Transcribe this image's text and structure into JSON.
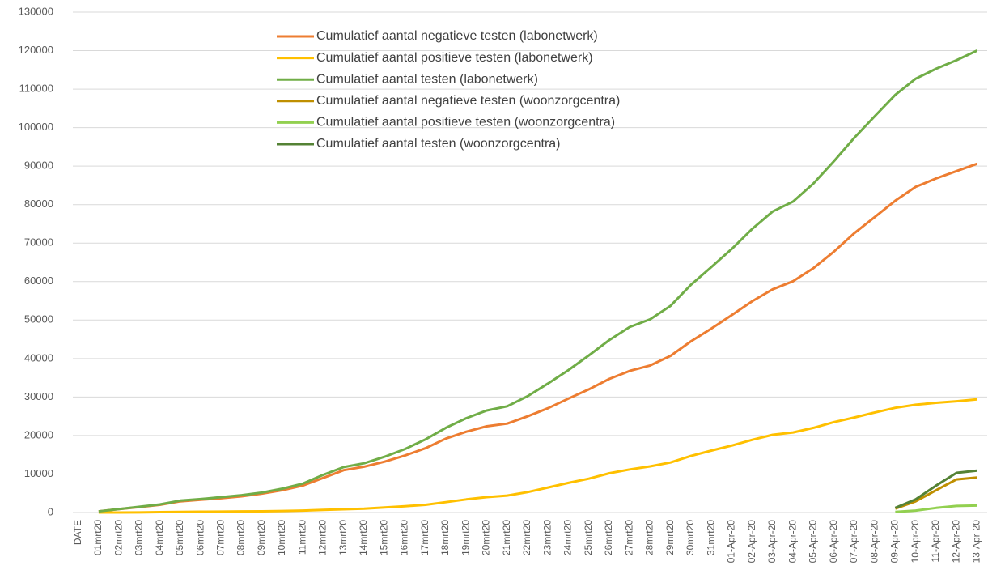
{
  "chart_data": {
    "type": "line",
    "categories": [
      "DATE",
      "01mrt20",
      "02mrt20",
      "03mrt20",
      "04mrt20",
      "05mrt20",
      "06mrt20",
      "07mrt20",
      "08mrt20",
      "09mrt20",
      "10mrt20",
      "11mrt20",
      "12mrt20",
      "13mrt20",
      "14mrt20",
      "15mrt20",
      "16mrt20",
      "17mrt20",
      "18mrt20",
      "19mrt20",
      "20mrt20",
      "21mrt20",
      "22mrt20",
      "23mrt20",
      "24mrt20",
      "25mrt20",
      "26mrt20",
      "27mrt20",
      "28mrt20",
      "29mrt20",
      "30mrt20",
      "31mrt20",
      "01-Apr-20",
      "02-Apr-20",
      "03-Apr-20",
      "04-Apr-20",
      "05-Apr-20",
      "06-Apr-20",
      "07-Apr-20",
      "08-Apr-20",
      "09-Apr-20",
      "10-Apr-20",
      "11-Apr-20",
      "12-Apr-20",
      "13-Apr-20"
    ],
    "series": [
      {
        "name": "Cumulatief aantal negatieve  testen (labonetwerk)",
        "color": "#ed7d31",
        "values": [
          null,
          300,
          900,
          1400,
          2000,
          2900,
          3300,
          3700,
          4200,
          4900,
          5800,
          7000,
          9000,
          11000,
          11900,
          13200,
          14800,
          16700,
          19200,
          21000,
          22400,
          23100,
          25000,
          27100,
          29600,
          32000,
          34700,
          36800,
          38200,
          40700,
          44500,
          47800,
          51300,
          54900,
          58000,
          60100,
          63500,
          67800,
          72600,
          76800,
          81000,
          84600,
          86800,
          88700,
          90600
        ]
      },
      {
        "name": "Cumulatief aantal positieve  testen (labonetwerk)",
        "color": "#ffc000",
        "values": [
          null,
          0,
          10,
          20,
          100,
          170,
          200,
          230,
          300,
          320,
          400,
          500,
          700,
          850,
          1000,
          1300,
          1650,
          2000,
          2700,
          3400,
          4000,
          4400,
          5300,
          6500,
          7700,
          8800,
          10200,
          11200,
          12000,
          13000,
          14700,
          16100,
          17400,
          18900,
          20200,
          20800,
          22000,
          23500,
          24700,
          26000,
          27200,
          28000,
          28500,
          28900,
          29400
        ]
      },
      {
        "name": "Cumulatief aantal testen (labonetwerk)",
        "color": "#70ad47",
        "values": [
          null,
          300,
          900,
          1500,
          2100,
          3100,
          3500,
          4000,
          4500,
          5200,
          6200,
          7500,
          9800,
          11800,
          12800,
          14500,
          16500,
          19000,
          22000,
          24500,
          26500,
          27600,
          30200,
          33500,
          37000,
          40800,
          44800,
          48200,
          50200,
          53700,
          59200,
          63800,
          68500,
          73700,
          78200,
          80800,
          85500,
          91300,
          97400,
          103000,
          108500,
          112700,
          115300,
          117500,
          120000
        ]
      },
      {
        "name": "Cumulatief aantal negatieve  testen (woonzorgcentra)",
        "color": "#bf8f00",
        "values": [
          null,
          null,
          null,
          null,
          null,
          null,
          null,
          null,
          null,
          null,
          null,
          null,
          null,
          null,
          null,
          null,
          null,
          null,
          null,
          null,
          null,
          null,
          null,
          null,
          null,
          null,
          null,
          null,
          null,
          null,
          null,
          null,
          null,
          null,
          null,
          null,
          null,
          null,
          null,
          null,
          1000,
          2900,
          5800,
          8600,
          9100
        ]
      },
      {
        "name": "Cumulatief aantal positieve  testen (woonzorgcentra)",
        "color": "#92d050",
        "values": [
          null,
          null,
          null,
          null,
          null,
          null,
          null,
          null,
          null,
          null,
          null,
          null,
          null,
          null,
          null,
          null,
          null,
          null,
          null,
          null,
          null,
          null,
          null,
          null,
          null,
          null,
          null,
          null,
          null,
          null,
          null,
          null,
          null,
          null,
          null,
          null,
          null,
          null,
          null,
          null,
          150,
          500,
          1200,
          1700,
          1800
        ]
      },
      {
        "name": "Cumulatief aantal testen (woonzorgcentra)",
        "color": "#548235",
        "values": [
          null,
          null,
          null,
          null,
          null,
          null,
          null,
          null,
          null,
          null,
          null,
          null,
          null,
          null,
          null,
          null,
          null,
          null,
          null,
          null,
          null,
          null,
          null,
          null,
          null,
          null,
          null,
          null,
          null,
          null,
          null,
          null,
          null,
          null,
          null,
          null,
          null,
          null,
          null,
          null,
          1200,
          3400,
          7000,
          10300,
          10900
        ]
      }
    ],
    "ylim": [
      0,
      130000
    ],
    "yticks": [
      0,
      10000,
      20000,
      30000,
      40000,
      50000,
      60000,
      70000,
      80000,
      90000,
      100000,
      110000,
      120000,
      130000
    ],
    "grid": true
  }
}
